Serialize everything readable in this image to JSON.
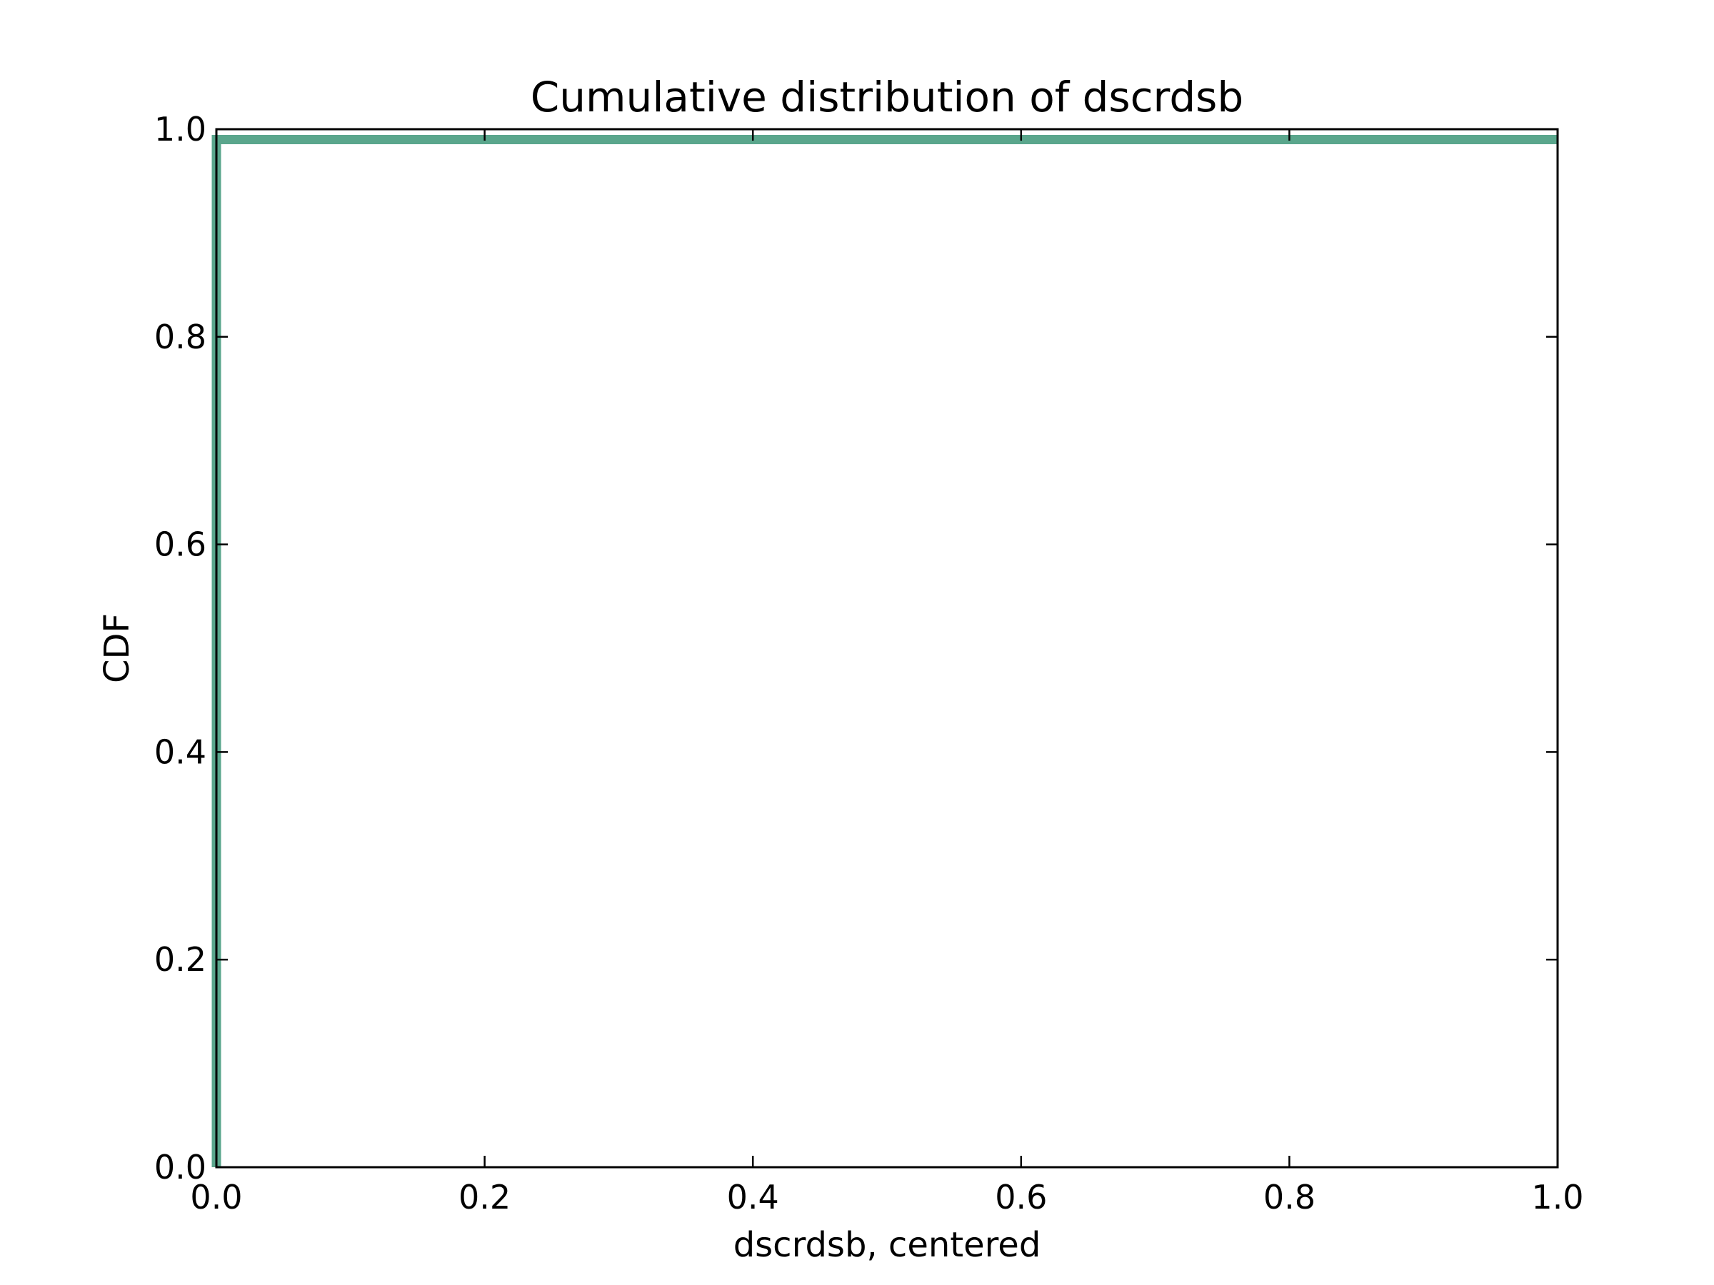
{
  "chart_data": {
    "type": "line",
    "title": "Cumulative distribution of dscrdsb",
    "xlabel": "dscrdsb, centered",
    "ylabel": "CDF",
    "xlim": [
      0.0,
      1.0
    ],
    "ylim": [
      0.0,
      1.0
    ],
    "xticks": [
      "0.0",
      "0.2",
      "0.4",
      "0.6",
      "0.8",
      "1.0"
    ],
    "yticks": [
      "0.0",
      "0.2",
      "0.4",
      "0.6",
      "0.8",
      "1.0"
    ],
    "grid": false,
    "legend": "none",
    "series": [
      {
        "color": "#5aa68c",
        "x": [
          0.0,
          0.0,
          1.0
        ],
        "y": [
          0.0,
          0.99,
          0.99
        ]
      }
    ]
  }
}
